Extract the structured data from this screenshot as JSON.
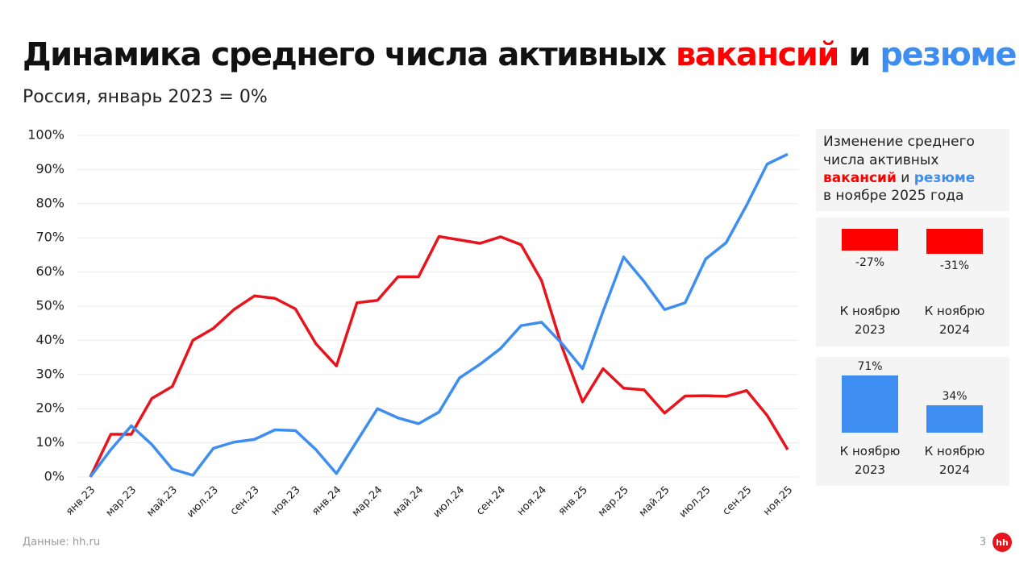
{
  "title_parts": [
    "Динамика среднего числа активных",
    "вакансий",
    "и",
    "резюме"
  ],
  "subtitle": "Россия, январь 2023 = 0%",
  "chart_data": {
    "type": "line",
    "categories": [
      "янв.23",
      null,
      "мар.23",
      null,
      "май.23",
      null,
      "июл.23",
      null,
      "сен.23",
      null,
      "ноя.23",
      null,
      "янв.24",
      null,
      "мар.24",
      null,
      "май.24",
      null,
      "июл.24",
      null,
      "сен.24",
      null,
      "ноя.24",
      null,
      "янв.25",
      null,
      "мар.25",
      null,
      "май.25",
      null,
      "июл.25",
      null,
      "сен.25",
      null,
      "ноя.25"
    ],
    "series": [
      {
        "color": "#e8141d",
        "values": [
          0,
          12.5,
          12.5,
          23,
          26.5,
          40,
          43.5,
          49,
          53,
          52.3,
          49.2,
          39,
          32.5,
          51,
          51.7,
          58.6,
          58.6,
          70.4,
          69.4,
          68.4,
          70.3,
          68,
          57.5,
          38,
          22,
          31.7,
          26,
          25.5,
          18.7,
          23.7,
          23.8,
          23.6,
          25.3,
          18,
          8
        ]
      },
      {
        "color": "#3d8ef0",
        "values": [
          0,
          8,
          15,
          9.5,
          2.3,
          0.5,
          8.4,
          10.2,
          11,
          13.8,
          13.6,
          8,
          1,
          10.5,
          20,
          17.3,
          15.6,
          19,
          29,
          33,
          37.6,
          44.3,
          45.3,
          39,
          31.7,
          48.5,
          64.4,
          57.2,
          49,
          51,
          63.8,
          68.6,
          79.6,
          91.6,
          94.5
        ]
      }
    ],
    "ylim": [
      0,
      100
    ],
    "yticks": [
      {
        "value": 0,
        "label": "0%"
      },
      {
        "value": 10,
        "label": "10%"
      },
      {
        "value": 20,
        "label": "20%"
      },
      {
        "value": 30,
        "label": "30%"
      },
      {
        "value": 40,
        "label": "40%"
      },
      {
        "value": 50,
        "label": "50%"
      },
      {
        "value": 60,
        "label": "60%"
      },
      {
        "value": 70,
        "label": "70%"
      },
      {
        "value": 80,
        "label": "80%"
      },
      {
        "value": 90,
        "label": "90%"
      },
      {
        "value": 100,
        "label": "100%"
      }
    ],
    "grid": true
  },
  "panel": {
    "heading": [
      "Изменение среднего",
      "числа активных",
      "вакансий",
      "и",
      "резюме",
      "в ноябре 2025 года"
    ],
    "vacancies": {
      "categories": [
        "К ноябрю 2023",
        "К ноябрю 2024"
      ],
      "values": [
        -27,
        -31
      ],
      "value_labels": [
        "-27%",
        "-31%"
      ],
      "color": "#ff0000"
    },
    "resumes": {
      "categories": [
        "К ноябрю 2023",
        "К ноябрю 2024"
      ],
      "values": [
        71,
        34
      ],
      "value_labels": [
        "71%",
        "34%"
      ],
      "color": "#3d8ef0"
    }
  },
  "footer": {
    "source": "Данные: hh.ru",
    "page": "3",
    "logo": "hh"
  }
}
